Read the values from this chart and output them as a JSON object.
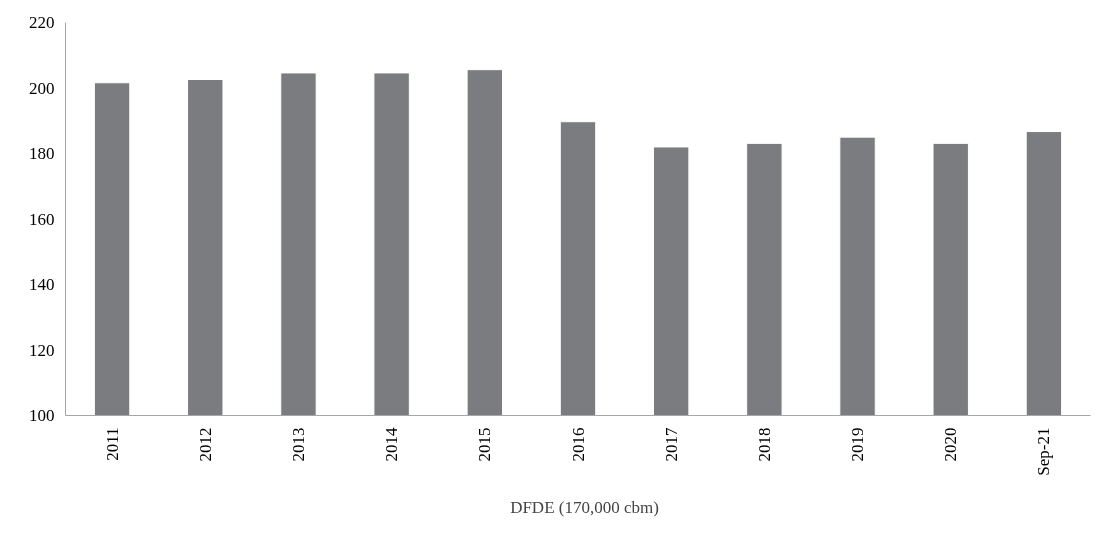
{
  "chart_data": {
    "type": "bar",
    "categories": [
      "2011",
      "2012",
      "2013",
      "2014",
      "2015",
      "2016",
      "2017",
      "2018",
      "2019",
      "2020",
      "Sep-21"
    ],
    "series": [
      {
        "name": "DFDE (170,000 cbm)",
        "color": "#7b7c80",
        "values": [
          201.6,
          202.6,
          204.6,
          204.6,
          205.6,
          189.7,
          182.0,
          183.1,
          185.0,
          183.1,
          186.7
        ]
      }
    ],
    "ylim": [
      100,
      220
    ],
    "yticks": [
      100,
      120,
      140,
      160,
      180,
      200,
      220
    ],
    "grid": false,
    "legend": "bottom"
  }
}
